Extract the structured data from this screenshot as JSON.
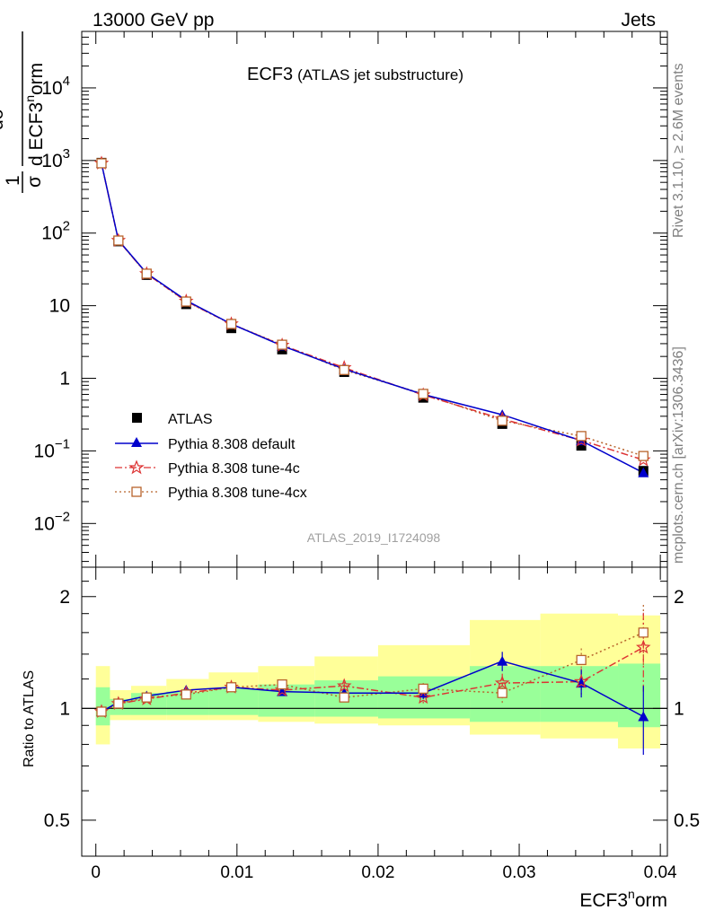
{
  "header": {
    "left": "13000 GeV pp",
    "right": "Jets"
  },
  "side_text": {
    "rivet": "Rivet 3.1.10, ≥ 2.6M events",
    "mcplots": "mcplots.cern.ch [arXiv:1306.3436]"
  },
  "watermark": "ATLAS_2019_I1724098",
  "chart_data": [
    {
      "type": "line",
      "title": "ECF3",
      "subtitle": "(ATLAS jet substructure)",
      "yaxis_label_parts": {
        "frac1": "1",
        "sigma": "σ",
        "d": "d",
        "dsigma": "dσ",
        "d_ecf": "d ECF3",
        "n": "n",
        "orm": "orm"
      },
      "x": [
        0.0004,
        0.0016,
        0.0036,
        0.0064,
        0.0096,
        0.0132,
        0.0176,
        0.0232,
        0.0288,
        0.0344,
        0.0388
      ],
      "xlim": [
        -0.001,
        0.0405
      ],
      "yscale": "log",
      "ylim": [
        0.0025,
        60000
      ],
      "yticks": [
        {
          "value": 0.01,
          "base": "10",
          "exp": "−2"
        },
        {
          "value": 0.1,
          "base": "10",
          "exp": "−1"
        },
        {
          "value": 1,
          "base": "1",
          "exp": ""
        },
        {
          "value": 10,
          "base": "10",
          "exp": ""
        },
        {
          "value": 100,
          "base": "10",
          "exp": "2"
        },
        {
          "value": 1000,
          "base": "10",
          "exp": "3"
        },
        {
          "value": 10000,
          "base": "10",
          "exp": "4"
        }
      ],
      "legend_position": "lower-left",
      "series": [
        {
          "name": "ATLAS",
          "marker": "square",
          "color": "#000000",
          "values": [
            930,
            77,
            26.5,
            10.5,
            4.9,
            2.5,
            1.22,
            0.54,
            0.235,
            0.118,
            0.053
          ],
          "err": [
            60,
            5,
            1.5,
            0.6,
            0.3,
            0.15,
            0.08,
            0.04,
            0.02,
            0.012,
            0.008
          ]
        },
        {
          "name": "Pythia 8.308 default",
          "marker": "triangle",
          "color": "#0000cc",
          "line": "solid",
          "values": [
            915,
            80,
            28,
            11.8,
            5.6,
            2.8,
            1.34,
            0.6,
            0.315,
            0.138,
            0.05
          ]
        },
        {
          "name": "Pythia 8.308 tune-4c",
          "marker": "star",
          "color": "#dd3333",
          "line": "dashdot",
          "values": [
            915,
            79,
            27.5,
            11.5,
            5.6,
            2.85,
            1.4,
            0.59,
            0.275,
            0.14,
            0.075
          ]
        },
        {
          "name": "Pythia 8.308 tune-4cx",
          "marker": "open-square",
          "color": "#b8642c",
          "line": "dotted",
          "values": [
            915,
            79,
            27.6,
            11.4,
            5.6,
            2.9,
            1.3,
            0.61,
            0.26,
            0.16,
            0.085
          ]
        }
      ]
    },
    {
      "type": "line",
      "ylabel": "Ratio to ATLAS",
      "xlabel_parts": {
        "base": "ECF3",
        "sup": "n",
        "tail": "orm"
      },
      "xticks": [
        "0",
        "0.01",
        "0.02",
        "0.03",
        "0.04"
      ],
      "xtick_values": [
        0,
        0.01,
        0.02,
        0.03,
        0.04
      ],
      "yticks": [
        "0.5",
        "1",
        "2"
      ],
      "ytick_values": [
        0.5,
        1,
        2
      ],
      "yscale": "log",
      "ylim": [
        0.4,
        2.4
      ],
      "bin_edges": [
        0,
        0.001,
        0.0025,
        0.005,
        0.008,
        0.0115,
        0.0155,
        0.02,
        0.0265,
        0.0315,
        0.037,
        0.04
      ],
      "band_yellow": [
        [
          0.8,
          1.3
        ],
        [
          0.93,
          1.12
        ],
        [
          0.93,
          1.15
        ],
        [
          0.93,
          1.2
        ],
        [
          0.93,
          1.25
        ],
        [
          0.92,
          1.3
        ],
        [
          0.91,
          1.38
        ],
        [
          0.9,
          1.48
        ],
        [
          0.85,
          1.73
        ],
        [
          0.83,
          1.8
        ],
        [
          0.78,
          1.78
        ]
      ],
      "band_green": [
        [
          0.9,
          1.14
        ],
        [
          0.96,
          1.06
        ],
        [
          0.96,
          1.1
        ],
        [
          0.96,
          1.11
        ],
        [
          0.96,
          1.13
        ],
        [
          0.95,
          1.16
        ],
        [
          0.95,
          1.19
        ],
        [
          0.94,
          1.22
        ],
        [
          0.92,
          1.3
        ],
        [
          0.92,
          1.3
        ],
        [
          0.89,
          1.32
        ]
      ],
      "series": [
        {
          "name": "Pythia 8.308 default",
          "color": "#0000cc",
          "values": [
            0.98,
            1.04,
            1.08,
            1.12,
            1.14,
            1.11,
            1.1,
            1.1,
            1.34,
            1.17,
            0.95
          ],
          "err": [
            0.01,
            0.01,
            0.01,
            0.01,
            0.01,
            0.02,
            0.03,
            0.04,
            0.08,
            0.1,
            0.2
          ]
        },
        {
          "name": "Pythia 8.308 tune-4c",
          "color": "#dd3333",
          "values": [
            0.98,
            1.03,
            1.06,
            1.1,
            1.14,
            1.12,
            1.15,
            1.07,
            1.17,
            1.18,
            1.46
          ],
          "err": [
            0.01,
            0.01,
            0.01,
            0.01,
            0.01,
            0.02,
            0.03,
            0.04,
            0.07,
            0.1,
            0.35
          ]
        },
        {
          "name": "Pythia 8.308 tune-4cx",
          "color": "#b8642c",
          "values": [
            0.98,
            1.03,
            1.07,
            1.09,
            1.14,
            1.16,
            1.07,
            1.13,
            1.1,
            1.35,
            1.6
          ],
          "err": [
            0.01,
            0.01,
            0.01,
            0.01,
            0.01,
            0.02,
            0.03,
            0.04,
            0.07,
            0.1,
            0.3
          ]
        }
      ]
    }
  ]
}
